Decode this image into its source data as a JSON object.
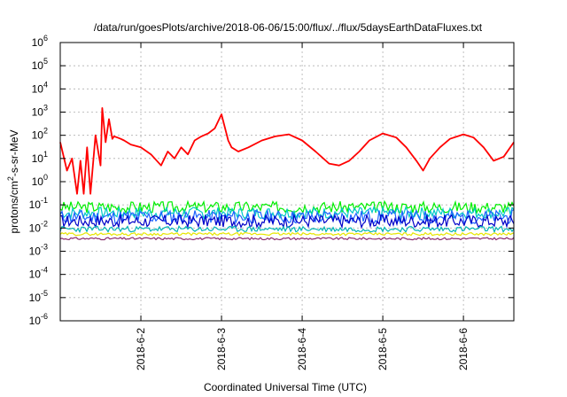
{
  "chart_data": {
    "type": "line",
    "title": "/data/run/goesPlots/archive/2018-06-06/15:00/flux/../flux/5daysEarthDataFluxes.txt",
    "xlabel": "Coordinated Universal Time (UTC)",
    "ylabel": "protons/cm²-s-sr-MeV",
    "y_scale": "log",
    "ylim": [
      1e-06,
      1000000.0
    ],
    "y_ticks": [
      {
        "value": 1e-06,
        "base": "10",
        "exp": "-6"
      },
      {
        "value": 1e-05,
        "base": "10",
        "exp": "-5"
      },
      {
        "value": 0.0001,
        "base": "10",
        "exp": "-4"
      },
      {
        "value": 0.001,
        "base": "10",
        "exp": "-3"
      },
      {
        "value": 0.01,
        "base": "10",
        "exp": "-2"
      },
      {
        "value": 0.1,
        "base": "10",
        "exp": "-1"
      },
      {
        "value": 1,
        "base": "10",
        "exp": "0"
      },
      {
        "value": 10,
        "base": "10",
        "exp": "1"
      },
      {
        "value": 100,
        "base": "10",
        "exp": "2"
      },
      {
        "value": 1000,
        "base": "10",
        "exp": "3"
      },
      {
        "value": 10000,
        "base": "10",
        "exp": "4"
      },
      {
        "value": 100000,
        "base": "10",
        "exp": "5"
      },
      {
        "value": 1000000,
        "base": "10",
        "exp": "6"
      }
    ],
    "xlim": [
      "2018-06-01T00:00",
      "2018-06-06T15:00"
    ],
    "x_ticks": [
      "2018-6-2",
      "2018-6-3",
      "2018-6-4",
      "2018-6-5",
      "2018-6-6"
    ],
    "grid": true,
    "legend": "none",
    "series": [
      {
        "color": "#ff0000",
        "x": [
          "2018-06-01T00:00",
          "2018-06-01T02:00",
          "2018-06-01T03:30",
          "2018-06-01T05:00",
          "2018-06-01T06:00",
          "2018-06-01T07:00",
          "2018-06-01T08:00",
          "2018-06-01T09:00",
          "2018-06-01T10:30",
          "2018-06-01T12:00",
          "2018-06-01T12:30",
          "2018-06-01T13:30",
          "2018-06-01T14:30",
          "2018-06-01T15:30",
          "2018-06-01T16:00",
          "2018-06-01T17:00",
          "2018-06-01T18:00",
          "2018-06-01T19:00",
          "2018-06-01T21:00",
          "2018-06-02T00:00",
          "2018-06-02T03:00",
          "2018-06-02T06:00",
          "2018-06-02T08:00",
          "2018-06-02T10:00",
          "2018-06-02T12:00",
          "2018-06-02T14:00",
          "2018-06-02T16:00",
          "2018-06-02T18:00",
          "2018-06-02T20:00",
          "2018-06-02T22:00",
          "2018-06-03T00:00",
          "2018-06-03T02:00",
          "2018-06-03T03:00",
          "2018-06-03T05:00",
          "2018-06-03T08:00",
          "2018-06-03T12:00",
          "2018-06-03T16:00",
          "2018-06-03T20:00",
          "2018-06-04T00:00",
          "2018-06-04T04:00",
          "2018-06-04T08:00",
          "2018-06-04T11:00",
          "2018-06-04T14:00",
          "2018-06-04T17:00",
          "2018-06-04T20:00",
          "2018-06-05T00:00",
          "2018-06-05T04:00",
          "2018-06-05T07:00",
          "2018-06-05T10:00",
          "2018-06-05T12:00",
          "2018-06-05T14:00",
          "2018-06-05T17:00",
          "2018-06-05T20:00",
          "2018-06-06T00:00",
          "2018-06-06T03:00",
          "2018-06-06T06:00",
          "2018-06-06T09:00",
          "2018-06-06T12:00",
          "2018-06-06T15:00"
        ],
        "y": [
          50,
          3,
          10,
          0.3,
          8,
          0.3,
          30,
          0.3,
          100,
          5,
          1500,
          50,
          500,
          70,
          90,
          80,
          70,
          60,
          40,
          30,
          15,
          5,
          20,
          10,
          30,
          15,
          60,
          90,
          120,
          200,
          800,
          60,
          30,
          20,
          30,
          60,
          90,
          110,
          60,
          20,
          6,
          5,
          8,
          20,
          60,
          120,
          80,
          30,
          8,
          3,
          10,
          30,
          70,
          110,
          80,
          30,
          8,
          12,
          50
        ]
      },
      {
        "color": "#00ee00",
        "base": 0.08,
        "amp": 0.5,
        "seed": 3
      },
      {
        "color": "#00c8c8",
        "base": 0.045,
        "amp": 0.5,
        "seed": 7
      },
      {
        "color": "#1e64ff",
        "base": 0.03,
        "amp": 0.6,
        "seed": 11
      },
      {
        "color": "#0000c8",
        "base": 0.02,
        "amp": 0.55,
        "seed": 17
      },
      {
        "color": "#00b4b4",
        "base": 0.009,
        "amp": 0.25,
        "seed": 23
      },
      {
        "color": "#e6e600",
        "base": 0.0055,
        "amp": 0.12,
        "seed": 29
      },
      {
        "color": "#8b2d6e",
        "base": 0.0035,
        "amp": 0.1,
        "seed": 31
      }
    ]
  }
}
